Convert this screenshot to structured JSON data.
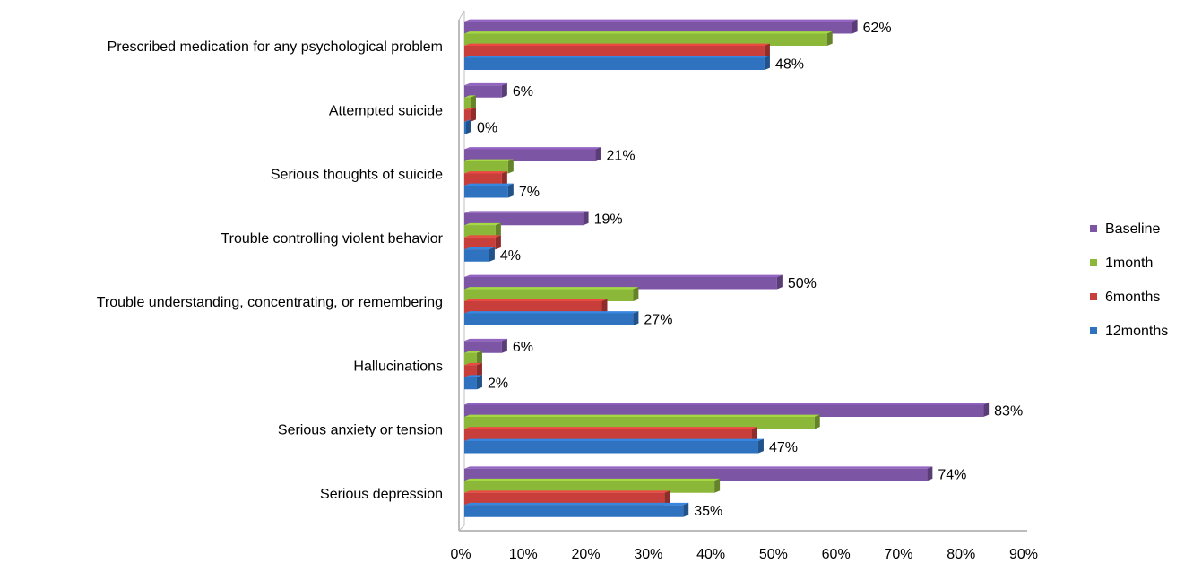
{
  "chart_data": {
    "type": "bar",
    "orientation": "horizontal",
    "style": "3d-clustered",
    "categories": [
      "Prescribed medication for any psychological problem",
      "Attempted suicide",
      "Serious thoughts of suicide",
      "Trouble controlling violent behavior",
      "Trouble understanding, concentrating, or remembering",
      "Hallucinations",
      "Serious anxiety or tension",
      "Serious depression"
    ],
    "series": [
      {
        "name": "Baseline",
        "color": "#7d55a5",
        "values": [
          62,
          6,
          21,
          19,
          50,
          6,
          83,
          74
        ]
      },
      {
        "name": "1month",
        "color": "#8cb83a",
        "values": [
          58,
          1,
          7,
          5,
          27,
          2,
          56,
          40
        ]
      },
      {
        "name": "6months",
        "color": "#c83e3a",
        "values": [
          48,
          1,
          6,
          5,
          22,
          2,
          46,
          32
        ]
      },
      {
        "name": "12months",
        "color": "#2f72bf",
        "values": [
          48,
          0,
          7,
          4,
          27,
          2,
          47,
          35
        ]
      }
    ],
    "data_labels": [
      {
        "category_index": 0,
        "series": "Baseline",
        "text": "62%"
      },
      {
        "category_index": 0,
        "series": "12months",
        "text": "48%"
      },
      {
        "category_index": 1,
        "series": "Baseline",
        "text": "6%"
      },
      {
        "category_index": 1,
        "series": "12months",
        "text": "0%"
      },
      {
        "category_index": 2,
        "series": "Baseline",
        "text": "21%"
      },
      {
        "category_index": 2,
        "series": "12months",
        "text": "7%"
      },
      {
        "category_index": 3,
        "series": "Baseline",
        "text": "19%"
      },
      {
        "category_index": 3,
        "series": "12months",
        "text": "4%"
      },
      {
        "category_index": 4,
        "series": "Baseline",
        "text": "50%"
      },
      {
        "category_index": 4,
        "series": "12months",
        "text": "27%"
      },
      {
        "category_index": 5,
        "series": "Baseline",
        "text": "6%"
      },
      {
        "category_index": 5,
        "series": "12months",
        "text": "2%"
      },
      {
        "category_index": 6,
        "series": "Baseline",
        "text": "83%"
      },
      {
        "category_index": 6,
        "series": "12months",
        "text": "47%"
      },
      {
        "category_index": 7,
        "series": "Baseline",
        "text": "74%"
      },
      {
        "category_index": 7,
        "series": "12months",
        "text": "35%"
      }
    ],
    "x_ticks": [
      "0%",
      "10%",
      "20%",
      "30%",
      "40%",
      "50%",
      "60%",
      "70%",
      "80%",
      "90%"
    ],
    "xlim": [
      0,
      90
    ],
    "title": "",
    "xlabel": "",
    "ylabel": "",
    "grid": false,
    "legend_position": "right"
  }
}
